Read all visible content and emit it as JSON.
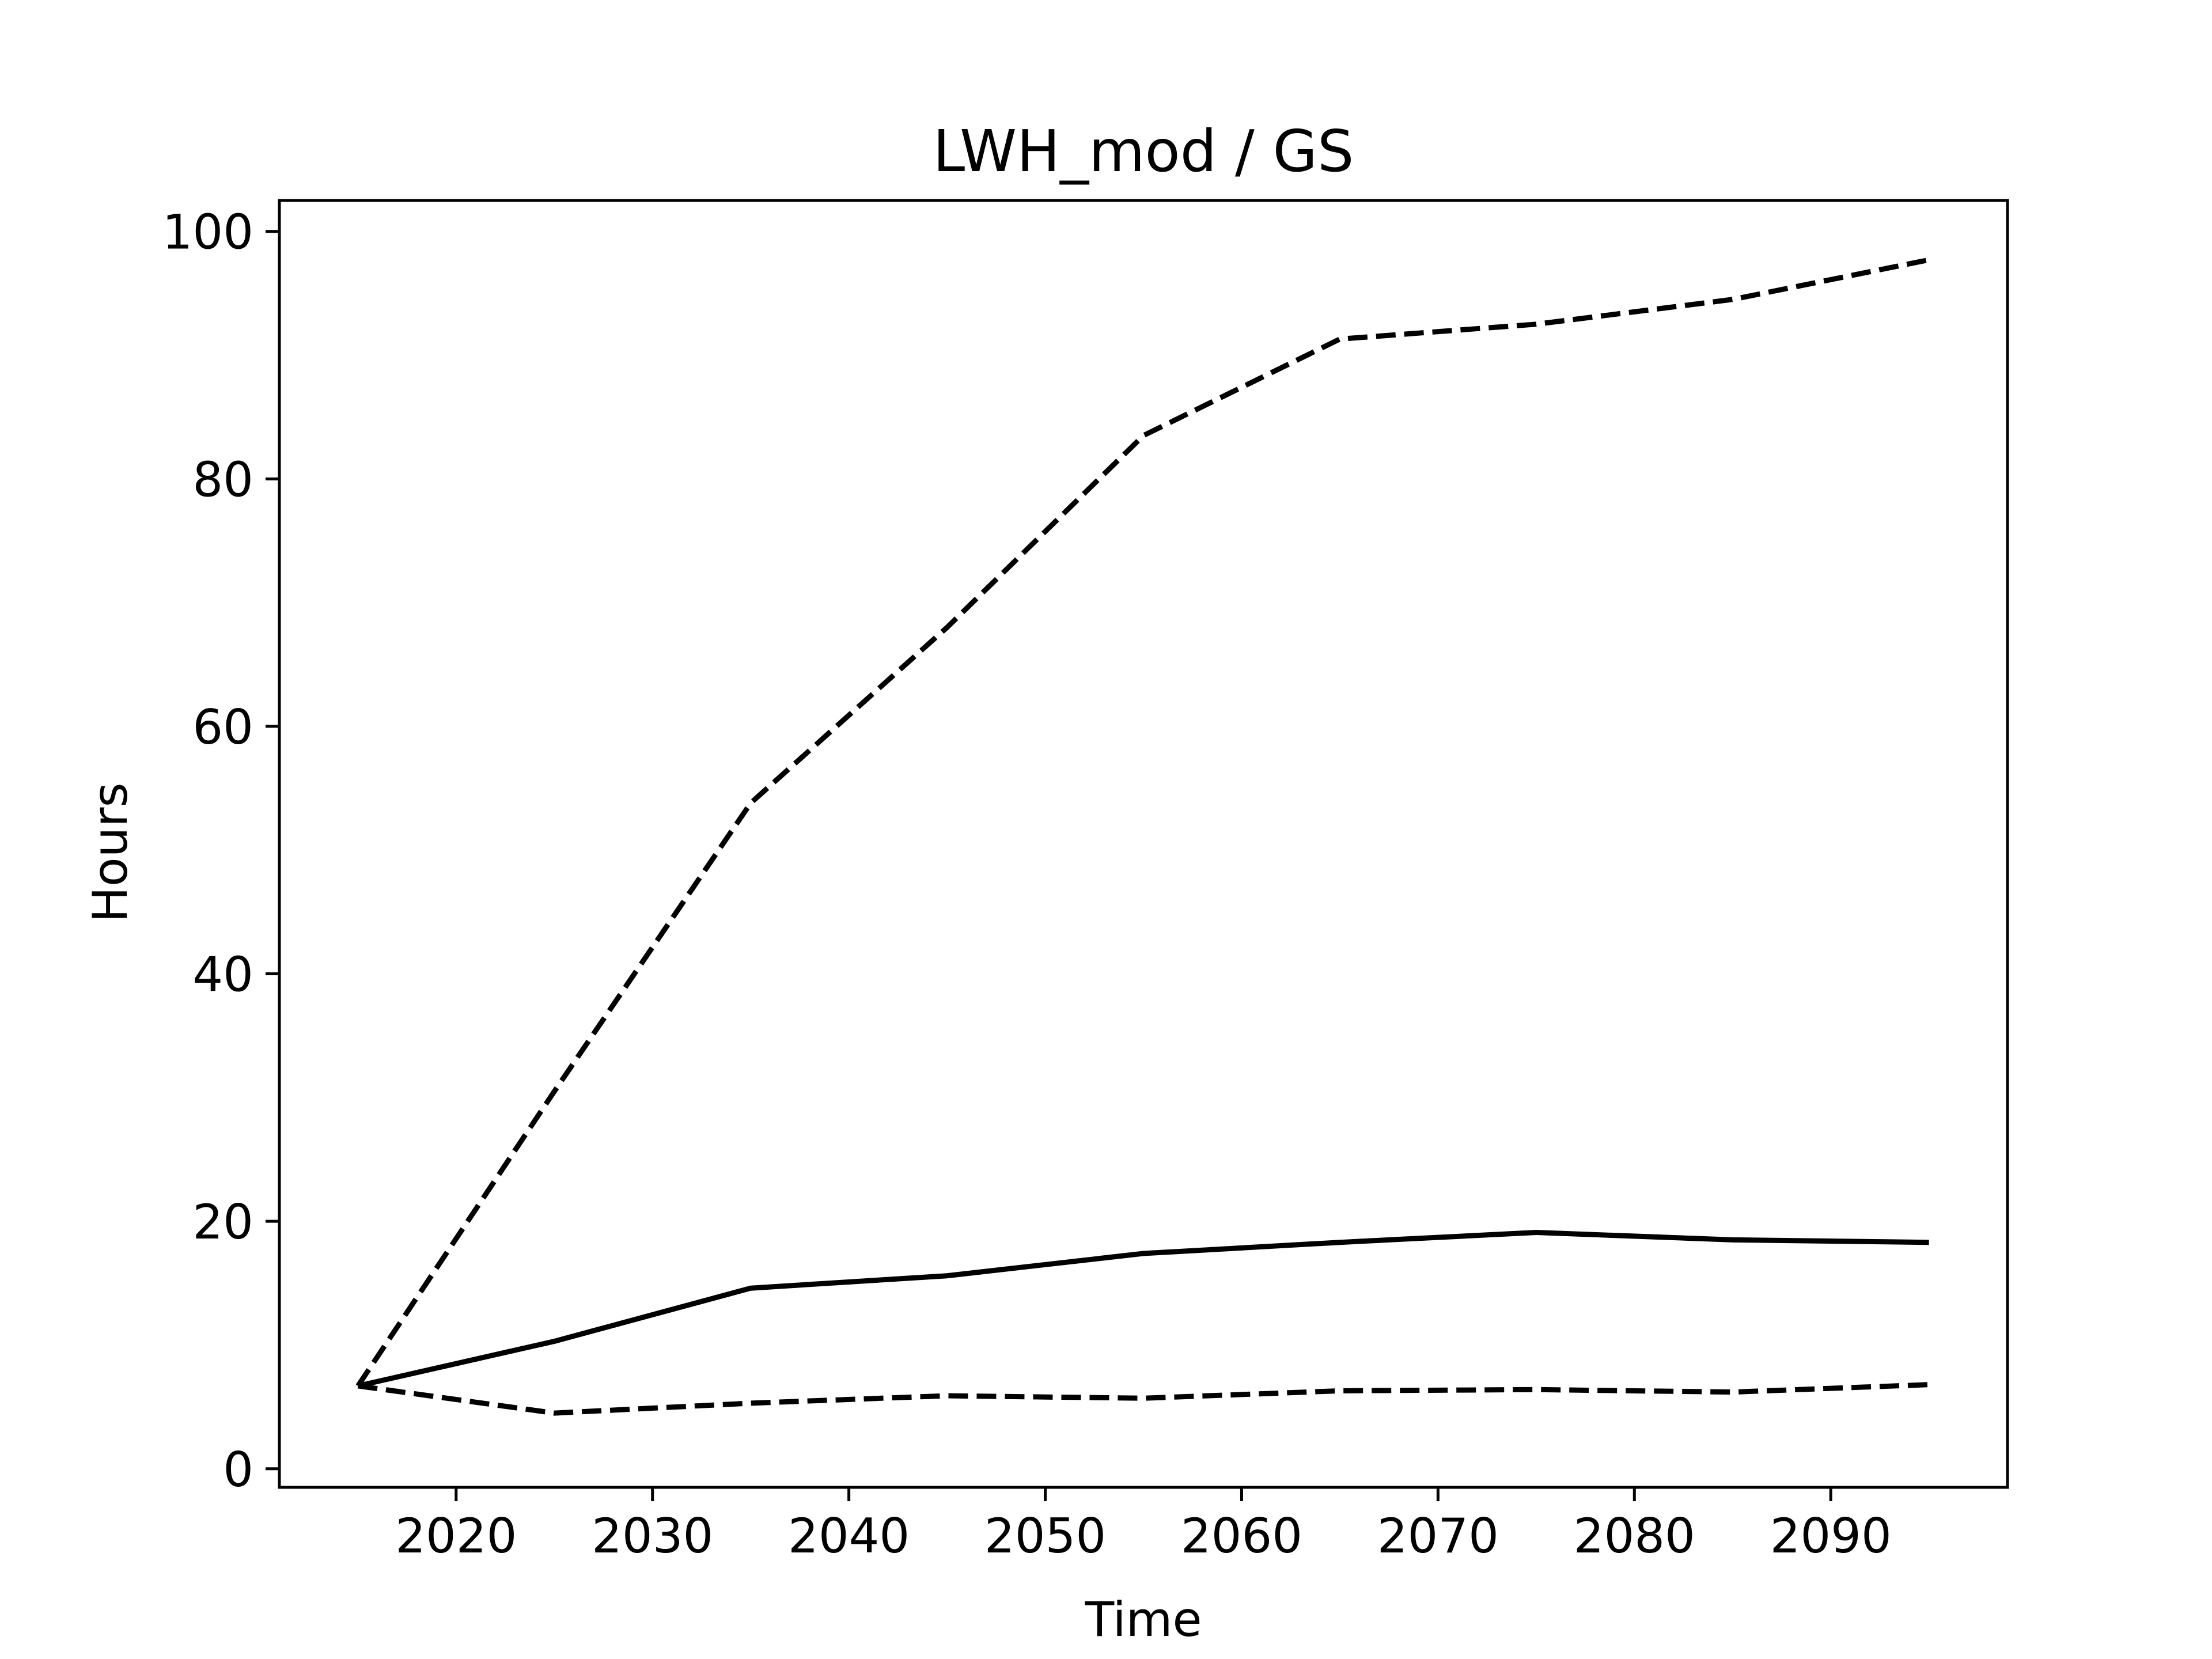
{
  "chart_data": {
    "type": "line",
    "title": "LWH_mod / GS",
    "xlabel": "Time",
    "ylabel": "Hours",
    "xlim": [
      2011,
      2099
    ],
    "ylim": [
      -1.5,
      102.5
    ],
    "xticks": [
      2020,
      2030,
      2040,
      2050,
      2060,
      2070,
      2080,
      2090
    ],
    "xtick_labels": [
      "2020",
      "2030",
      "2040",
      "2050",
      "2060",
      "2070",
      "2080",
      "2090"
    ],
    "yticks": [
      0,
      20,
      40,
      60,
      80,
      100
    ],
    "ytick_labels": [
      "0",
      "20",
      "40",
      "60",
      "80",
      "100"
    ],
    "grid": false,
    "legend": false,
    "x": [
      2015,
      2025,
      2035,
      2045,
      2055,
      2065,
      2075,
      2085,
      2095
    ],
    "series": [
      {
        "style": "solid",
        "color": "#000000",
        "values": [
          6.7,
          10.3,
          14.6,
          15.6,
          17.4,
          18.3,
          19.1,
          18.5,
          18.3
        ]
      },
      {
        "style": "dashed",
        "color": "#000000",
        "values": [
          6.7,
          30.5,
          53.8,
          68.0,
          83.5,
          91.3,
          92.5,
          94.5,
          97.7
        ]
      },
      {
        "style": "dashed",
        "color": "#000000",
        "values": [
          6.7,
          4.5,
          5.3,
          5.9,
          5.7,
          6.3,
          6.4,
          6.2,
          6.8
        ]
      }
    ]
  }
}
